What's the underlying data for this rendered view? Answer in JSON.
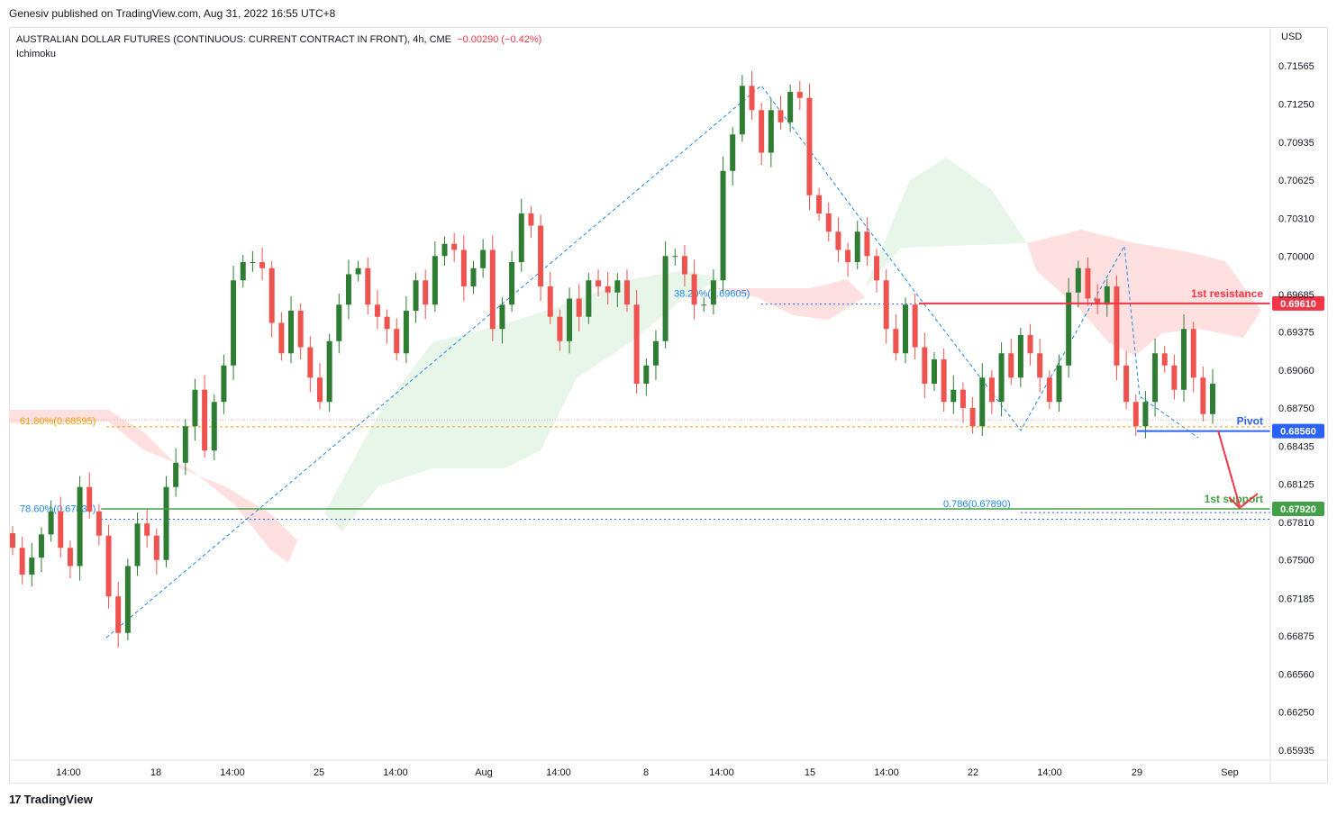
{
  "header": {
    "published": "Genesiv published on TradingView.com, Aug 31, 2022 16:55 UTC+8"
  },
  "legend": {
    "symbol": "AUSTRALIAN DOLLAR FUTURES (CONTINUOUS: CURRENT CONTRACT IN FRONT), 4h, CME",
    "change": "−0.00290 (−0.42%)",
    "indicator": "Ichimoku"
  },
  "footer": {
    "brand": "TradingView"
  },
  "colors": {
    "up": "#2e7d32",
    "down": "#ef5350",
    "resistance": "#f23645",
    "pivot": "#2962ff",
    "support": "#43a047",
    "fib": "#1e88e5",
    "cloud_bull": "#e8f5e9",
    "cloud_bear": "#ffe0e0"
  },
  "chart_data": {
    "type": "candlestick",
    "currency": "USD",
    "price_ticks": [
      "0.71565",
      "0.71250",
      "0.70935",
      "0.70625",
      "0.70310",
      "0.70000",
      "0.69685",
      "0.69375",
      "0.69060",
      "0.68750",
      "0.68435",
      "0.68125",
      "0.67810",
      "0.67500",
      "0.67185",
      "0.66875",
      "0.66560",
      "0.66250",
      "0.65935"
    ],
    "time_ticks": [
      "14:00",
      "18",
      "14:00",
      "25",
      "14:00",
      "Aug",
      "14:00",
      "8",
      "14:00",
      "15",
      "14:00",
      "22",
      "14:00",
      "29",
      "Sep"
    ],
    "levels": [
      {
        "name": "1st resistance",
        "price": 0.6961,
        "label": "0.69610"
      },
      {
        "name": "Pivot",
        "price": 0.6856,
        "label": "0.68560"
      },
      {
        "name": "1st support",
        "price": 0.6792,
        "label": "0.67920"
      }
    ],
    "fib_labels": [
      {
        "text": "61.80%(0.68595)",
        "price": 0.68595
      },
      {
        "text": "78.60%(0.67835)",
        "price": 0.67835
      },
      {
        "text": "38.20%(0.69605)",
        "price": 0.69605
      },
      {
        "text": "0.786(0.67890)",
        "price": 0.6789
      }
    ],
    "closes": [
      0.676,
      0.6738,
      0.6752,
      0.6771,
      0.679,
      0.676,
      0.6745,
      0.681,
      0.679,
      0.677,
      0.672,
      0.669,
      0.6745,
      0.678,
      0.677,
      0.675,
      0.681,
      0.683,
      0.686,
      0.689,
      0.684,
      0.688,
      0.691,
      0.698,
      0.6995,
      0.6995,
      0.699,
      0.6945,
      0.692,
      0.6955,
      0.6925,
      0.69,
      0.688,
      0.693,
      0.696,
      0.6985,
      0.699,
      0.696,
      0.695,
      0.694,
      0.692,
      0.6955,
      0.698,
      0.696,
      0.7,
      0.701,
      0.7005,
      0.6975,
      0.699,
      0.7005,
      0.694,
      0.696,
      0.6995,
      0.7035,
      0.7025,
      0.6975,
      0.695,
      0.693,
      0.6965,
      0.695,
      0.698,
      0.6975,
      0.697,
      0.698,
      0.696,
      0.6895,
      0.691,
      0.693,
      0.7,
      0.7,
      0.6985,
      0.696,
      0.696,
      0.698,
      0.707,
      0.71,
      0.714,
      0.712,
      0.7085,
      0.712,
      0.711,
      0.7135,
      0.713,
      0.705,
      0.7035,
      0.702,
      0.7005,
      0.6995,
      0.702,
      0.7,
      0.698,
      0.694,
      0.692,
      0.696,
      0.6925,
      0.6895,
      0.6915,
      0.688,
      0.689,
      0.6875,
      0.686,
      0.69,
      0.688,
      0.692,
      0.69,
      0.6935,
      0.692,
      0.69,
      0.688,
      0.691,
      0.697,
      0.699,
      0.6965,
      0.696,
      0.6975,
      0.691,
      0.688,
      0.686,
      0.688,
      0.692,
      0.691,
      0.689,
      0.694,
      0.69,
      0.687,
      0.6895
    ]
  }
}
